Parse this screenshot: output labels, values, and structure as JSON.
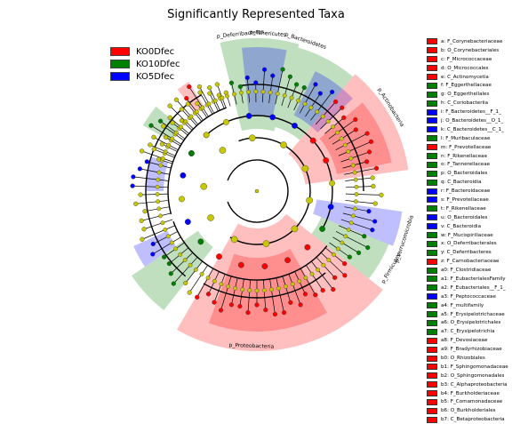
{
  "title": "Significantly Represented Taxa",
  "colors": {
    "KO0Dfec": "#ff0000",
    "KO10Dfec": "#008000",
    "KO5Dfec": "#0000ff",
    "node": "#c8c800"
  },
  "legend": [
    {
      "label": "KO0Dfec",
      "color": "#ff0000"
    },
    {
      "label": "KO10Dfec",
      "color": "#008000"
    },
    {
      "label": "KO5Dfec",
      "color": "#0000ff"
    }
  ],
  "chart_data": {
    "type": "cladogram",
    "title": "Significantly Represented Taxa",
    "groups": [
      "KO0Dfec",
      "KO10Dfec",
      "KO5Dfec"
    ],
    "clades": [
      {
        "name": "p_Deferribacteres",
        "group": "KO10Dfec"
      },
      {
        "name": "p_Tenericutes",
        "group": "KO5Dfec"
      },
      {
        "name": "p_Bacteroidetes",
        "group": "KO10Dfec"
      },
      {
        "name": "p_Actinobacteria",
        "group": "KO0Dfec"
      },
      {
        "name": "p_Verrucomicrobia",
        "group": "KO5Dfec"
      },
      {
        "name": "p_Firmicutes",
        "group": "KO10Dfec"
      },
      {
        "name": "p_Proteobacteria",
        "group": "KO0Dfec"
      }
    ],
    "taxa": [
      {
        "id": "a",
        "label": "a: F_Corynebacteriaceae",
        "group": "KO0Dfec"
      },
      {
        "id": "b",
        "label": "b: O_Corynebacteriales",
        "group": "KO0Dfec"
      },
      {
        "id": "c",
        "label": "c: F_Micrococcaceae",
        "group": "KO0Dfec"
      },
      {
        "id": "d",
        "label": "d: O_Micrococcales",
        "group": "KO0Dfec"
      },
      {
        "id": "e",
        "label": "e: C_Actinomycetia",
        "group": "KO0Dfec"
      },
      {
        "id": "f",
        "label": "f: F_Eggerthellaceae",
        "group": "KO10Dfec"
      },
      {
        "id": "g",
        "label": "g: O_Eggerthellales",
        "group": "KO10Dfec"
      },
      {
        "id": "h",
        "label": "h: C_Coriobacteriia",
        "group": "KO10Dfec"
      },
      {
        "id": "i",
        "label": "i: F_Bacteroidetes__F_1_",
        "group": "KO5Dfec"
      },
      {
        "id": "j",
        "label": "j: O_Bacteroidetes__O_1_",
        "group": "KO5Dfec"
      },
      {
        "id": "k",
        "label": "k: C_Bacteroidetes__C_1_",
        "group": "KO5Dfec"
      },
      {
        "id": "l",
        "label": "l: F_Muribaculaceae",
        "group": "KO10Dfec"
      },
      {
        "id": "m",
        "label": "m: F_Prevotellaceae",
        "group": "KO0Dfec"
      },
      {
        "id": "n",
        "label": "n: F_Rikenellaceae",
        "group": "KO10Dfec"
      },
      {
        "id": "o",
        "label": "o: F_Tannerellaceae",
        "group": "KO10Dfec"
      },
      {
        "id": "p",
        "label": "p: O_Bacteroidales",
        "group": "KO10Dfec"
      },
      {
        "id": "q",
        "label": "q: C_Bacteroidia",
        "group": "KO10Dfec"
      },
      {
        "id": "r",
        "label": "r: F_Bacteroidaceae",
        "group": "KO5Dfec"
      },
      {
        "id": "s",
        "label": "s: F_Prevotellaceae",
        "group": "KO5Dfec"
      },
      {
        "id": "t",
        "label": "t: F_Rikenellaceae",
        "group": "KO10Dfec"
      },
      {
        "id": "u",
        "label": "u: O_Bacteroidales",
        "group": "KO5Dfec"
      },
      {
        "id": "v",
        "label": "v: C_Bacteroidia",
        "group": "KO5Dfec"
      },
      {
        "id": "w",
        "label": "w: F_Mucispirillaceae",
        "group": "KO10Dfec"
      },
      {
        "id": "x",
        "label": "x: O_Deferribacterales",
        "group": "KO10Dfec"
      },
      {
        "id": "y",
        "label": "y: C_Deferribacteres",
        "group": "KO10Dfec"
      },
      {
        "id": "z",
        "label": "z: F_Carnobacteriaceae",
        "group": "KO0Dfec"
      },
      {
        "id": "a0",
        "label": "a0: F_Clostridiaceae",
        "group": "KO10Dfec"
      },
      {
        "id": "a1",
        "label": "a1: F_EubacterialesFamily",
        "group": "KO10Dfec"
      },
      {
        "id": "a2",
        "label": "a2: F_Eubacteriales__F_1_",
        "group": "KO10Dfec"
      },
      {
        "id": "a3",
        "label": "a3: F_Peptococcaceae",
        "group": "KO5Dfec"
      },
      {
        "id": "a4",
        "label": "a4: F_multifamily",
        "group": "KO10Dfec"
      },
      {
        "id": "a5",
        "label": "a5: F_Erysipelotrichaceae",
        "group": "KO10Dfec"
      },
      {
        "id": "a6",
        "label": "a6: O_Erysipelotrichales",
        "group": "KO10Dfec"
      },
      {
        "id": "a7",
        "label": "a7: C_Erysipelotrichia",
        "group": "KO10Dfec"
      },
      {
        "id": "a8",
        "label": "a8: F_Devosiaceae",
        "group": "KO0Dfec"
      },
      {
        "id": "a9",
        "label": "a9: F_Bradyrhizobiaceae",
        "group": "KO0Dfec"
      },
      {
        "id": "b0",
        "label": "b0: O_Rhizobiales",
        "group": "KO0Dfec"
      },
      {
        "id": "b1",
        "label": "b1: F_Sphingomonadaceae",
        "group": "KO0Dfec"
      },
      {
        "id": "b2",
        "label": "b2: O_Sphingomonadales",
        "group": "KO0Dfec"
      },
      {
        "id": "b3",
        "label": "b3: C_Alphaproteobacteria",
        "group": "KO0Dfec"
      },
      {
        "id": "b4",
        "label": "b4: F_Burkholderiaceae",
        "group": "KO0Dfec"
      },
      {
        "id": "b5",
        "label": "b5: F_Comamonadaceae",
        "group": "KO0Dfec"
      },
      {
        "id": "b6",
        "label": "b6: O_Burkholderiales",
        "group": "KO0Dfec"
      },
      {
        "id": "b7",
        "label": "b7: C_Betaproteobacteria",
        "group": "KO0Dfec"
      }
    ]
  }
}
